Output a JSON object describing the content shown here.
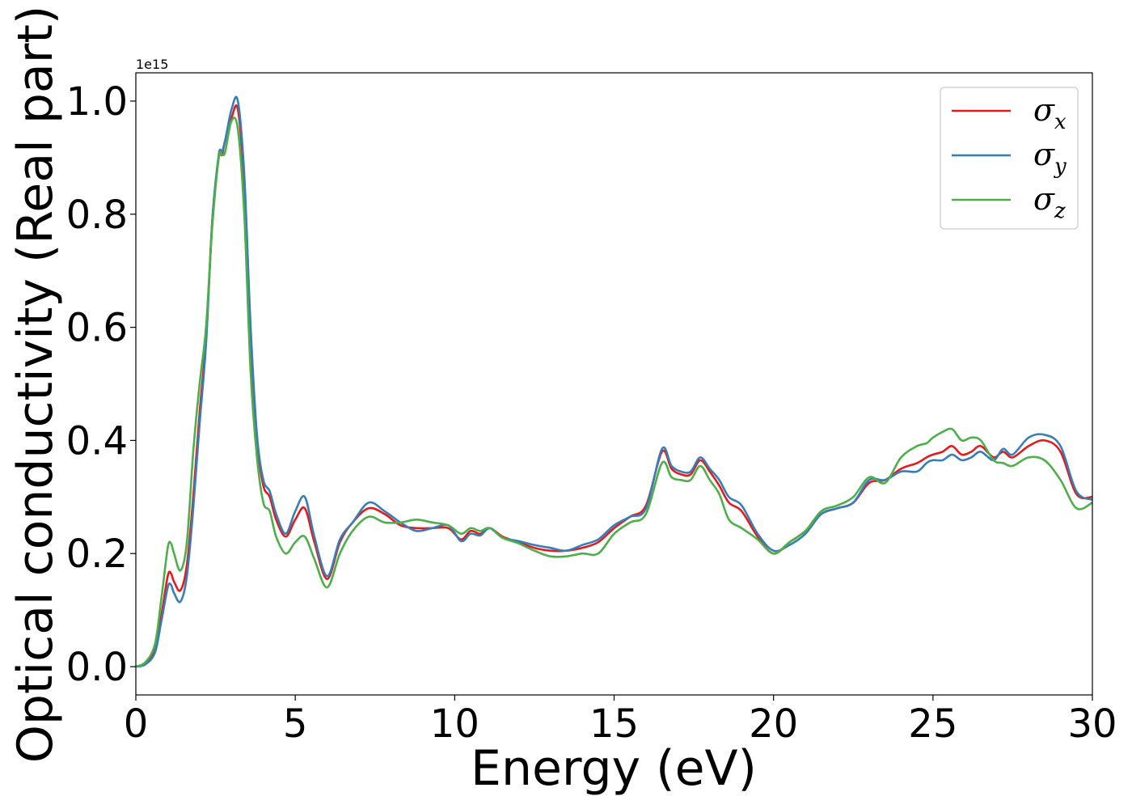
{
  "chart_data": {
    "type": "line",
    "title": "",
    "xlabel": "Energy (eV)",
    "ylabel": "Optical conductivity (Real part)",
    "y_offset_text": "1e15",
    "y_scale": 1000000000000000.0,
    "xlim": [
      0,
      30
    ],
    "ylim": [
      -0.05,
      1.05
    ],
    "x_ticks": [
      0,
      5,
      10,
      15,
      20,
      25,
      30
    ],
    "x_tick_labels": [
      "0",
      "5",
      "10",
      "15",
      "20",
      "25",
      "30"
    ],
    "y_ticks": [
      0.0,
      0.2,
      0.4,
      0.6,
      0.8,
      1.0
    ],
    "y_tick_labels": [
      "0.0",
      "0.2",
      "0.4",
      "0.6",
      "0.8",
      "1.0"
    ],
    "grid": false,
    "legend_position": "top-right",
    "x": [
      0,
      0.3,
      0.6,
      0.8,
      1.0,
      1.1,
      1.2,
      1.4,
      1.6,
      1.8,
      2.0,
      2.2,
      2.4,
      2.6,
      2.7,
      2.8,
      3.0,
      3.2,
      3.4,
      3.6,
      3.8,
      4.0,
      4.2,
      4.4,
      4.7,
      5.0,
      5.3,
      5.6,
      6.0,
      6.4,
      6.8,
      7.3,
      7.8,
      8.3,
      8.8,
      9.3,
      9.8,
      10.2,
      10.5,
      10.8,
      11.1,
      11.5,
      12.0,
      12.5,
      13.0,
      13.5,
      14.0,
      14.5,
      15.0,
      15.5,
      16.0,
      16.5,
      16.8,
      17.1,
      17.4,
      17.7,
      18.0,
      18.3,
      18.6,
      19.0,
      19.5,
      20.0,
      20.5,
      21.0,
      21.5,
      22.0,
      22.5,
      23.0,
      23.5,
      24.0,
      24.5,
      24.8,
      25.0,
      25.3,
      25.6,
      25.9,
      26.2,
      26.5,
      26.9,
      27.2,
      27.5,
      28.0,
      28.5,
      29.0,
      29.5,
      30.0
    ],
    "series": [
      {
        "name": "σx",
        "color": "#e41a1c",
        "values": [
          0.0,
          0.005,
          0.03,
          0.09,
          0.16,
          0.165,
          0.15,
          0.135,
          0.18,
          0.3,
          0.45,
          0.58,
          0.79,
          0.9,
          0.905,
          0.93,
          0.97,
          0.985,
          0.85,
          0.58,
          0.4,
          0.32,
          0.3,
          0.26,
          0.23,
          0.26,
          0.28,
          0.22,
          0.155,
          0.22,
          0.255,
          0.28,
          0.27,
          0.25,
          0.245,
          0.245,
          0.245,
          0.225,
          0.24,
          0.235,
          0.245,
          0.23,
          0.22,
          0.21,
          0.205,
          0.205,
          0.21,
          0.22,
          0.245,
          0.265,
          0.285,
          0.38,
          0.35,
          0.34,
          0.34,
          0.365,
          0.345,
          0.32,
          0.29,
          0.275,
          0.23,
          0.2,
          0.22,
          0.24,
          0.27,
          0.28,
          0.29,
          0.325,
          0.33,
          0.35,
          0.36,
          0.37,
          0.375,
          0.38,
          0.39,
          0.375,
          0.38,
          0.39,
          0.37,
          0.38,
          0.37,
          0.39,
          0.4,
          0.38,
          0.305,
          0.3
        ]
      },
      {
        "name": "σy",
        "color": "#377eb8",
        "values": [
          0.0,
          0.004,
          0.025,
          0.08,
          0.14,
          0.145,
          0.13,
          0.115,
          0.16,
          0.28,
          0.43,
          0.57,
          0.79,
          0.905,
          0.91,
          0.93,
          0.985,
          1.0,
          0.87,
          0.6,
          0.41,
          0.33,
          0.31,
          0.27,
          0.235,
          0.275,
          0.3,
          0.23,
          0.16,
          0.225,
          0.255,
          0.29,
          0.275,
          0.255,
          0.24,
          0.245,
          0.25,
          0.222,
          0.235,
          0.232,
          0.245,
          0.228,
          0.222,
          0.215,
          0.21,
          0.205,
          0.215,
          0.225,
          0.25,
          0.265,
          0.28,
          0.385,
          0.355,
          0.345,
          0.345,
          0.37,
          0.35,
          0.33,
          0.3,
          0.285,
          0.235,
          0.205,
          0.215,
          0.235,
          0.27,
          0.28,
          0.29,
          0.33,
          0.33,
          0.345,
          0.345,
          0.36,
          0.365,
          0.365,
          0.375,
          0.365,
          0.37,
          0.38,
          0.365,
          0.385,
          0.375,
          0.405,
          0.41,
          0.39,
          0.31,
          0.295
        ]
      },
      {
        "name": "σz",
        "color": "#4daf4a",
        "values": [
          0.0,
          0.008,
          0.04,
          0.12,
          0.21,
          0.218,
          0.2,
          0.17,
          0.22,
          0.38,
          0.5,
          0.6,
          0.78,
          0.9,
          0.905,
          0.91,
          0.965,
          0.95,
          0.8,
          0.52,
          0.37,
          0.29,
          0.275,
          0.23,
          0.2,
          0.22,
          0.23,
          0.19,
          0.14,
          0.2,
          0.24,
          0.265,
          0.255,
          0.255,
          0.26,
          0.255,
          0.25,
          0.235,
          0.245,
          0.24,
          0.245,
          0.228,
          0.218,
          0.205,
          0.195,
          0.195,
          0.2,
          0.2,
          0.235,
          0.255,
          0.27,
          0.36,
          0.335,
          0.33,
          0.33,
          0.355,
          0.33,
          0.305,
          0.26,
          0.245,
          0.225,
          0.2,
          0.22,
          0.24,
          0.275,
          0.285,
          0.3,
          0.335,
          0.325,
          0.37,
          0.39,
          0.395,
          0.405,
          0.415,
          0.42,
          0.4,
          0.405,
          0.4,
          0.365,
          0.36,
          0.355,
          0.37,
          0.365,
          0.33,
          0.28,
          0.29
        ]
      }
    ]
  }
}
